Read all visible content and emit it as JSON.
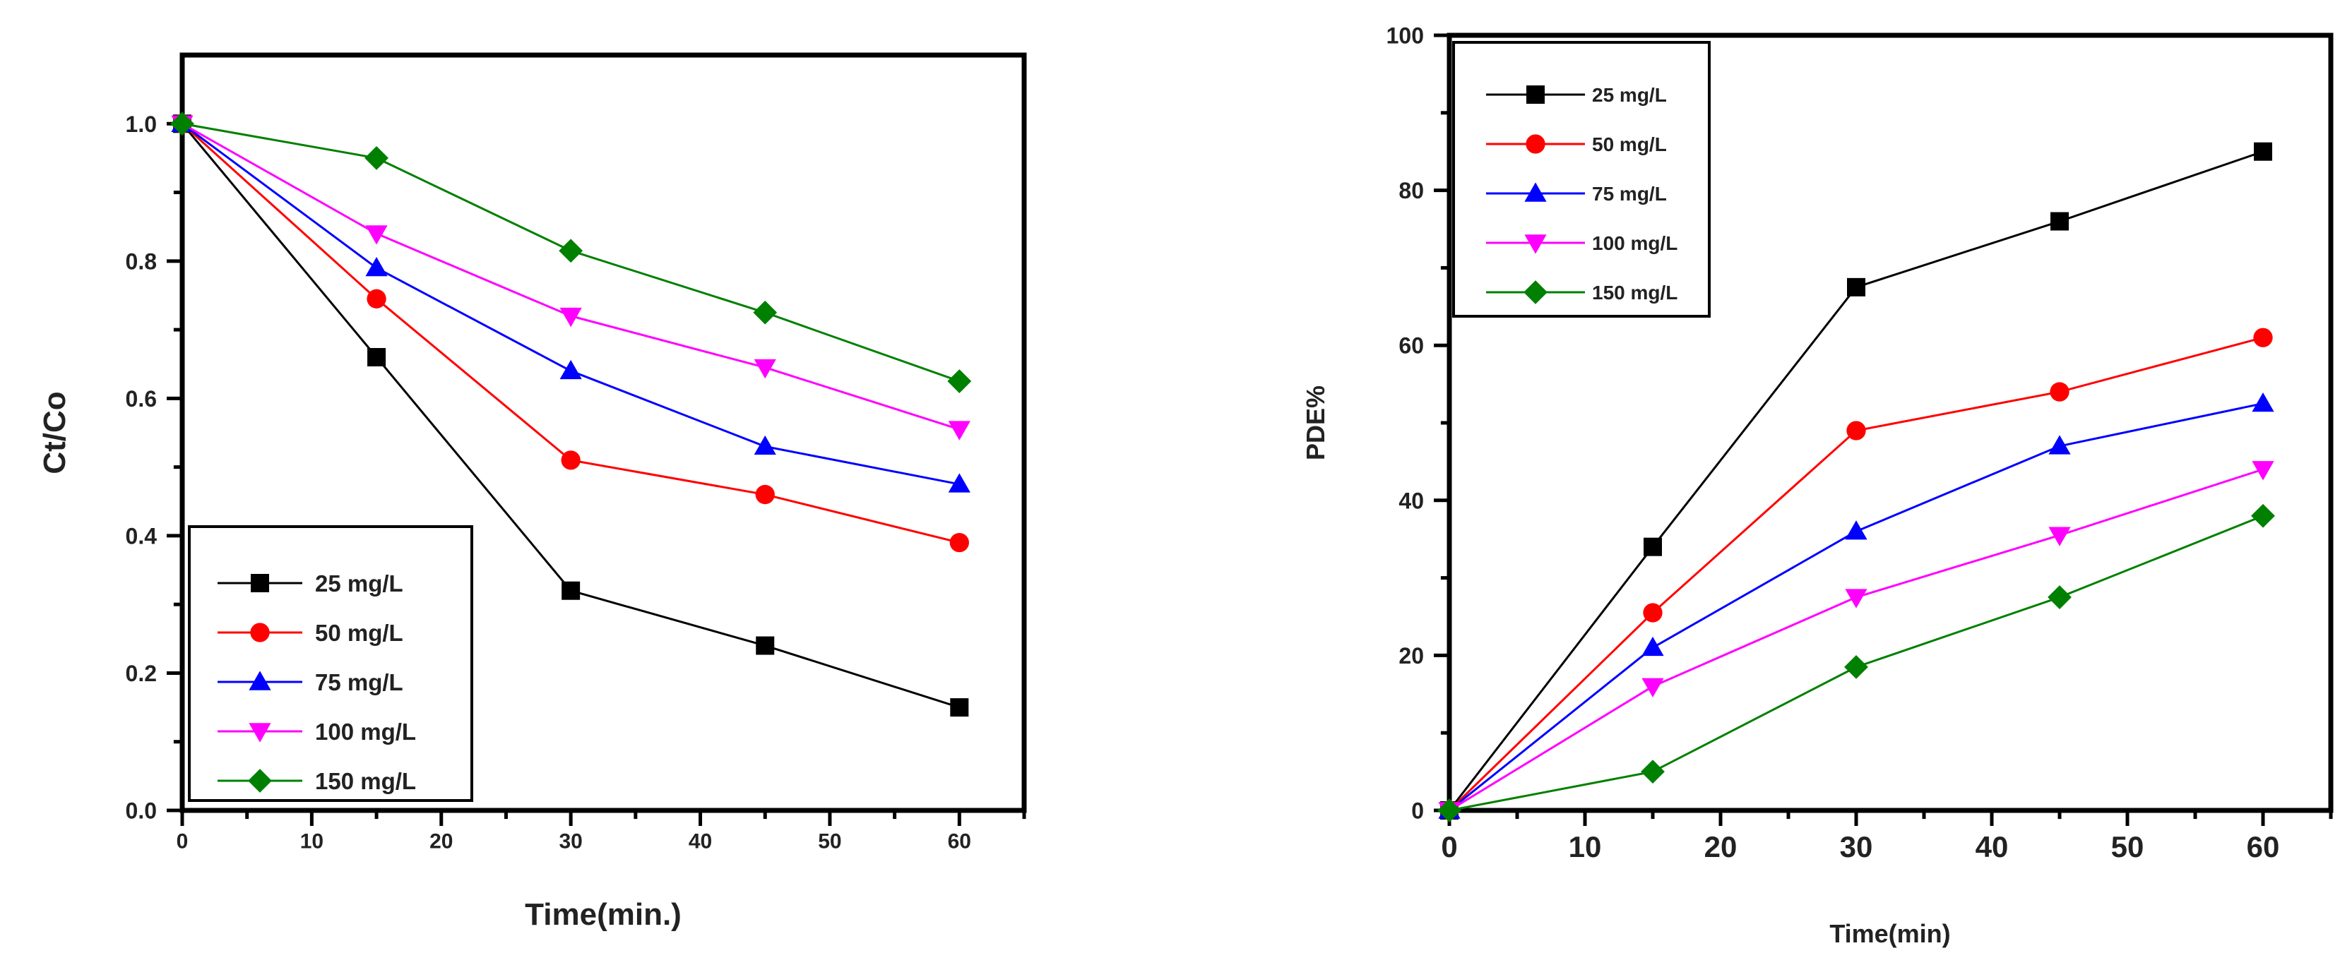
{
  "chart_data": [
    {
      "type": "line",
      "title": "",
      "xlabel": "Time(min.)",
      "ylabel": "Ct/Co",
      "xlim": [
        0,
        65
      ],
      "ylim": [
        0,
        1.1
      ],
      "xticks": [
        0,
        10,
        20,
        30,
        40,
        50,
        60
      ],
      "xtick_labels": [
        "0",
        "10",
        "20",
        "30",
        "40",
        "50",
        "60"
      ],
      "yticks": [
        0,
        0.2,
        0.4,
        0.6,
        0.8,
        1.0
      ],
      "ytick_labels": [
        "0.0",
        "0.2",
        "0.4",
        "0.6",
        "0.8",
        "1.0"
      ],
      "legend_position": "bottom-left",
      "x": [
        0,
        15,
        30,
        45,
        60
      ],
      "series": [
        {
          "name": "25 mg/L",
          "color": "#000000",
          "marker": "square",
          "values": [
            1.0,
            0.66,
            0.32,
            0.24,
            0.15
          ]
        },
        {
          "name": "50 mg/L",
          "color": "#ff0000",
          "marker": "circle",
          "values": [
            1.0,
            0.745,
            0.51,
            0.46,
            0.39
          ]
        },
        {
          "name": "75 mg/L",
          "color": "#0000ff",
          "marker": "triangle-up",
          "values": [
            1.0,
            0.79,
            0.64,
            0.53,
            0.475
          ]
        },
        {
          "name": "100 mg/L",
          "color": "#ff00ff",
          "marker": "triangle-down",
          "values": [
            1.0,
            0.84,
            0.72,
            0.645,
            0.555
          ]
        },
        {
          "name": "150 mg/L",
          "color": "#008000",
          "marker": "diamond",
          "values": [
            1.0,
            0.95,
            0.815,
            0.725,
            0.625
          ]
        }
      ]
    },
    {
      "type": "line",
      "title": "",
      "xlabel": "Time(min)",
      "ylabel": "PDE%",
      "xlim": [
        0,
        65
      ],
      "ylim": [
        0,
        100
      ],
      "xticks": [
        0,
        10,
        20,
        30,
        40,
        50,
        60
      ],
      "xtick_labels": [
        "0",
        "10",
        "20",
        "30",
        "40",
        "50",
        "60"
      ],
      "yticks": [
        0,
        20,
        40,
        60,
        80,
        100
      ],
      "ytick_labels": [
        "0",
        "20",
        "40",
        "60",
        "80",
        "100"
      ],
      "legend_position": "top-left",
      "x": [
        0,
        15,
        30,
        45,
        60
      ],
      "series": [
        {
          "name": "25 mg/L",
          "color": "#000000",
          "marker": "square",
          "values": [
            0,
            34,
            67.5,
            76,
            85
          ]
        },
        {
          "name": "50 mg/L",
          "color": "#ff0000",
          "marker": "circle",
          "values": [
            0,
            25.5,
            49,
            54,
            61
          ]
        },
        {
          "name": "75 mg/L",
          "color": "#0000ff",
          "marker": "triangle-up",
          "values": [
            0,
            21,
            36,
            47,
            52.5
          ]
        },
        {
          "name": "100 mg/L",
          "color": "#ff00ff",
          "marker": "triangle-down",
          "values": [
            0,
            16,
            27.5,
            35.5,
            44
          ]
        },
        {
          "name": "150 mg/L",
          "color": "#008000",
          "marker": "diamond",
          "values": [
            0,
            5,
            18.5,
            27.5,
            38
          ]
        }
      ]
    }
  ]
}
